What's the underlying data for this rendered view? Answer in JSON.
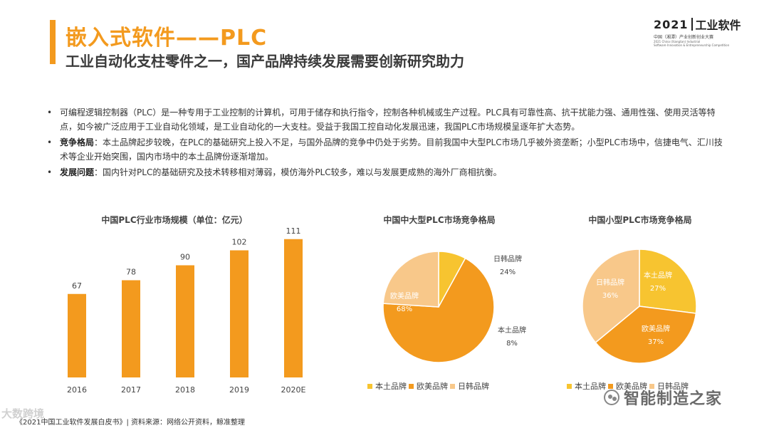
{
  "header": {
    "title": "嵌入式软件——PLC",
    "subtitle": "工业自动化支柱零件之一，国产品牌持续发展需要创新研究助力"
  },
  "logo": {
    "year": "2021",
    "name": "工业软件",
    "cn_line": "中国（湘潭）产业创新创业大赛",
    "en_line1": "2021 China (Xiangtan) Industrial",
    "en_line2": "Software Innovation & Entrepreneurship Competition"
  },
  "bullets": [
    {
      "label": "",
      "text": "可编程逻辑控制器（PLC）是一种专用于工业控制的计算机，可用于储存和执行指令，控制各种机械或生产过程。PLC具有可靠性高、抗干扰能力强、通用性强、使用灵活等特点，如今被广泛应用于工业自动化领域，是工业自动化的一大支柱。受益于我国工控自动化发展迅速，我国PLC市场规模呈逐年扩大态势。"
    },
    {
      "label": "竞争格局",
      "text": "：本土品牌起步较晚，在PLC的基础研究上投入不足，与国外品牌的竞争中仍处于劣势。目前我国中大型PLC市场几乎被外资垄断；小型PLC市场中，信捷电气、汇川技术等企业开始突围，国内市场中的本土品牌份逐渐增加。"
    },
    {
      "label": "发展问题",
      "text": "：国内针对PLC的基础研究及技术转移相对薄弱，模仿海外PLC较多，难以与发展更成熟的海外厂商相抗衡。"
    }
  ],
  "colors": {
    "accent": "#f39a1e",
    "local": "#f7c430",
    "western": "#f39a1e",
    "japan_korea": "#f8c88a"
  },
  "chart_data": [
    {
      "type": "bar",
      "title": "中国PLC行业市场规模（单位：亿元）",
      "categories": [
        "2016",
        "2017",
        "2018",
        "2019",
        "2020E"
      ],
      "values": [
        67,
        78,
        90,
        102,
        111
      ],
      "ylim": [
        0,
        120
      ]
    },
    {
      "type": "pie",
      "title": "中国中大型PLC市场竞争格局",
      "labels": [
        "本土品牌",
        "欧美品牌",
        "日韩品牌"
      ],
      "values": [
        8,
        68,
        24
      ],
      "value_labels": [
        "8%",
        "68%",
        "24%"
      ],
      "legend": "bottom"
    },
    {
      "type": "pie",
      "title": "中国小型PLC市场竞争格局",
      "labels": [
        "本土品牌",
        "欧美品牌",
        "日韩品牌"
      ],
      "values": [
        27,
        37,
        36
      ],
      "value_labels": [
        "27%",
        "37%",
        "36%"
      ],
      "legend": "bottom"
    }
  ],
  "footer": "《2021中国工业软件发展白皮书》| 资料来源：网络公开资料，鲸准整理",
  "watermarks": {
    "left": "大数跨境",
    "right": "智能制造之家"
  }
}
